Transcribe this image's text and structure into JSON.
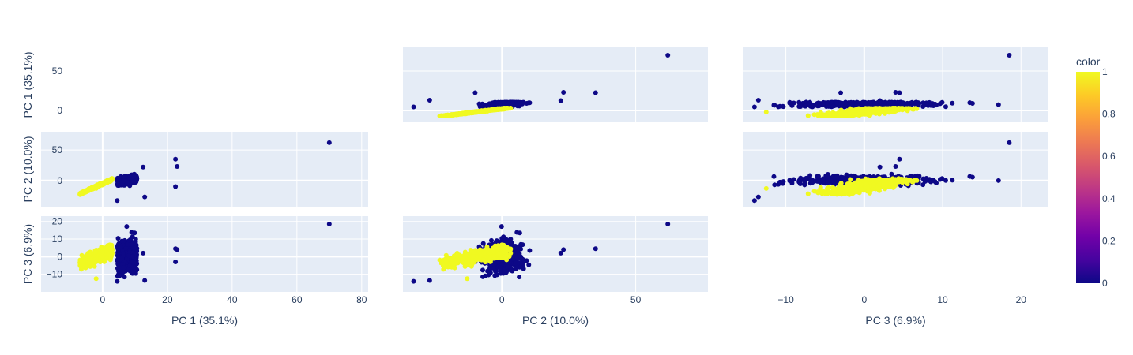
{
  "chart_data": {
    "type": "scatter",
    "subtype": "scatter-matrix",
    "show_diagonal": false,
    "dimensions": [
      "PC 1 (35.1%)",
      "PC 2 (10.0%)",
      "PC 3 (6.9%)"
    ],
    "axes": {
      "PC 1 (35.1%)": {
        "range": [
          -19,
          82
        ],
        "ticks": [
          0,
          20,
          40,
          60,
          80
        ],
        "tick_labels": [
          "0",
          "20",
          "40",
          "60",
          "80"
        ],
        "yrange": [
          -15,
          80
        ],
        "yticks": [
          0,
          50
        ],
        "ytick_labels": [
          "0",
          "50"
        ]
      },
      "PC 2 (10.0%)": {
        "range": [
          -37,
          77
        ],
        "ticks": [
          0,
          50
        ],
        "tick_labels": [
          "0",
          "50"
        ],
        "yrange": [
          -43,
          80
        ],
        "yticks": [
          0,
          50
        ],
        "ytick_labels": [
          "0",
          "50"
        ]
      },
      "PC 3 (6.9%)": {
        "range": [
          -15.5,
          23.5
        ],
        "ticks": [
          -10,
          0,
          10,
          20
        ],
        "tick_labels": [
          "−10",
          "0",
          "10",
          "20"
        ],
        "yrange": [
          -20,
          23
        ],
        "yticks": [
          -10,
          0,
          10,
          20
        ],
        "ytick_labels": [
          "−10",
          "0",
          "10",
          "20"
        ]
      }
    },
    "color_scale": {
      "title": "color",
      "range": [
        0,
        1
      ],
      "ticks": [
        0,
        0.2,
        0.4,
        0.6,
        0.8,
        1
      ],
      "tick_labels": [
        "0",
        "0.2",
        "0.4",
        "0.6",
        "0.8",
        "1"
      ],
      "stops": [
        "#0d0887",
        "#46039f",
        "#7201a8",
        "#9c179e",
        "#bd3786",
        "#d8576b",
        "#ed7953",
        "#fb9f3a",
        "#fdca26",
        "#f0f921"
      ]
    },
    "groups": [
      {
        "color_value": 0,
        "marker_color": "#0d0887",
        "cluster": {
          "center": [
            7,
            0,
            0
          ],
          "spread": [
            3,
            5,
            5
          ]
        },
        "outliers": [
          [
            70,
            62,
            18.5
          ],
          [
            22.5,
            35,
            4.5
          ],
          [
            23,
            23,
            4.0
          ],
          [
            22.5,
            -10,
            -3.0
          ],
          [
            13,
            -27,
            -13.5
          ],
          [
            4.5,
            -33,
            -14.0
          ],
          [
            12.5,
            22,
            2.0
          ]
        ]
      },
      {
        "color_value": 1,
        "marker_color": "#f0f921",
        "cluster": {
          "center": [
            -4,
            -5,
            0
          ],
          "spread": [
            2.5,
            5,
            2.5
          ]
        },
        "outliers": [
          [
            -2,
            -13,
            -12.5
          ]
        ]
      }
    ]
  }
}
